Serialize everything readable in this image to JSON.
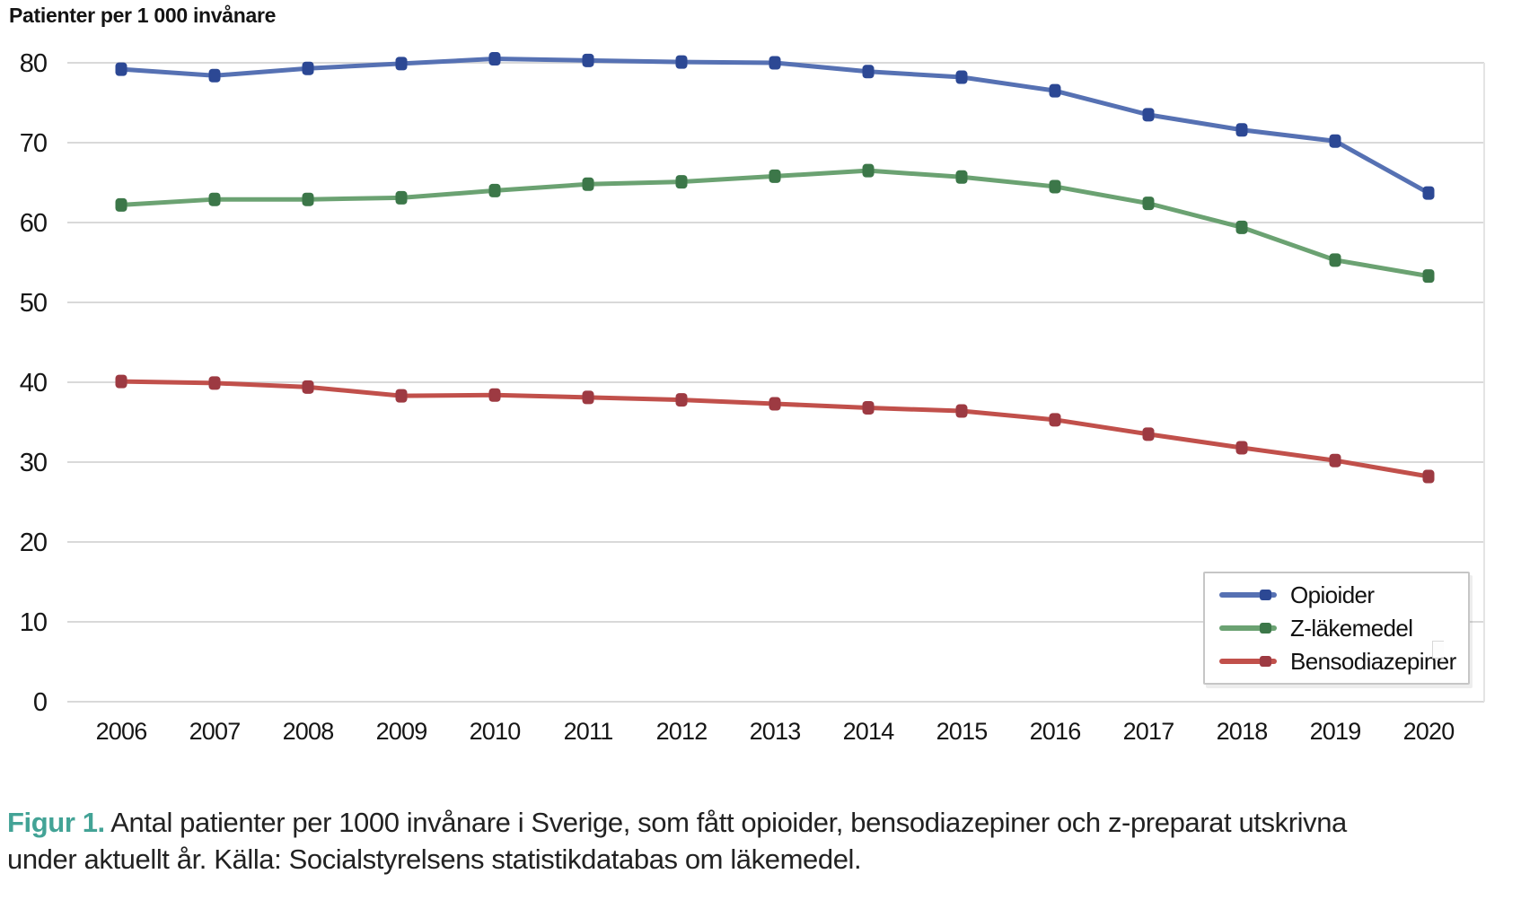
{
  "chart_data": {
    "type": "line",
    "title": "Patienter per 1 000 invånare",
    "x": [
      2006,
      2007,
      2008,
      2009,
      2010,
      2011,
      2012,
      2013,
      2014,
      2015,
      2016,
      2017,
      2018,
      2019,
      2020
    ],
    "xlabel": "",
    "ylabel": "Patienter per 1 000 invånare",
    "ylim": [
      0,
      80
    ],
    "yticks": [
      0,
      10,
      20,
      30,
      40,
      50,
      60,
      70,
      80
    ],
    "grid": "horizontal",
    "legend_position": "lower-right-box",
    "series": [
      {
        "name": "Opioider",
        "color": "#5671b3",
        "marker_color": "#2c4894",
        "values": [
          79.2,
          78.4,
          79.3,
          79.9,
          80.5,
          80.3,
          80.1,
          80.0,
          78.9,
          78.2,
          76.5,
          73.5,
          71.6,
          70.2,
          63.7
        ]
      },
      {
        "name": "Z-läkemedel",
        "color": "#6ba272",
        "marker_color": "#3c7749",
        "values": [
          62.2,
          62.9,
          62.9,
          63.1,
          64.0,
          64.8,
          65.1,
          65.8,
          66.5,
          65.7,
          64.5,
          62.4,
          59.4,
          55.3,
          53.3
        ]
      },
      {
        "name": "Bensodiazepiner",
        "color": "#c1504b",
        "marker_color": "#9d3a42",
        "values": [
          40.1,
          39.9,
          39.4,
          38.3,
          38.4,
          38.1,
          37.8,
          37.3,
          36.8,
          36.4,
          35.3,
          33.5,
          31.8,
          30.2,
          28.2
        ]
      }
    ]
  },
  "header": {
    "axis_title": "Patienter per 1 000 invånare"
  },
  "caption": {
    "label": "Figur 1.",
    "line1": " Antal patienter per 1000 invånare i Sverige, som fått opioider, bensodiazepiner och z-preparat utskrivna",
    "line2": "under aktuellt år. Källa: Socialstyrelsens statistikdatabas om läkemedel."
  },
  "colors": {
    "grid": "#d9d9d9",
    "plot_right_border": "#e4e4e4",
    "tick_text": "#161616",
    "caption_label": "#43a396"
  }
}
